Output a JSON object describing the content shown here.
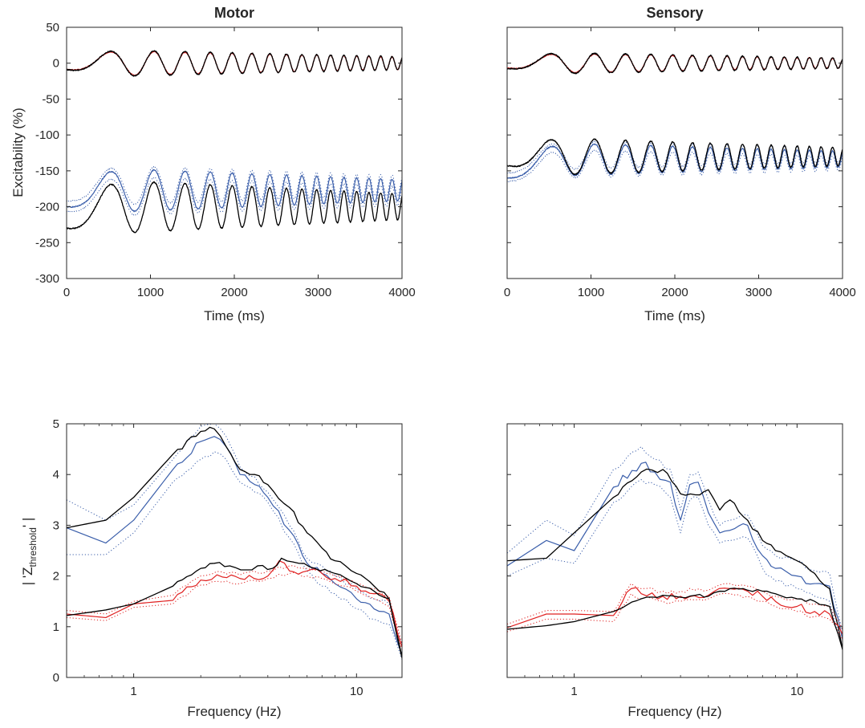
{
  "figure": {
    "colors": {
      "black": "#000000",
      "blue": "#3A5EAA",
      "red": "#E02020",
      "axis": "#262626"
    }
  },
  "chart_data": [
    {
      "id": "motor-time",
      "type": "line",
      "title": "Motor",
      "xlabel": "Time (ms)",
      "ylabel": "Excitability (%)",
      "xlim": [
        0,
        4000
      ],
      "ylim": [
        -300,
        50
      ],
      "xticks": [
        0,
        1000,
        2000,
        3000,
        4000
      ],
      "xtick_labels": [
        "0",
        "1000",
        "2000",
        "3000",
        "4000"
      ],
      "yticks": [
        -300,
        -250,
        -200,
        -150,
        -100,
        -50,
        0,
        50
      ],
      "ytick_labels": [
        "-300",
        "-250",
        "-200",
        "-150",
        "-100",
        "-50",
        "0",
        "50"
      ],
      "grid": false,
      "series": [
        {
          "color": "#3A5EAA",
          "style": "dotted",
          "width": 1,
          "kind": "chirp",
          "base": -170,
          "startOffset": -8,
          "amp": 30
        },
        {
          "color": "#3A5EAA",
          "style": "dotted",
          "width": 1,
          "kind": "chirp",
          "base": -185,
          "startOffset": -8,
          "amp": 30
        },
        {
          "color": "#3A5EAA",
          "style": "solid",
          "width": 1.2,
          "kind": "chirp",
          "base": -177,
          "startOffset": -8,
          "amp": 33
        },
        {
          "color": "#000000",
          "style": "solid",
          "width": 1.3,
          "kind": "chirp",
          "base": -200,
          "startOffset": -12,
          "amp": 40
        },
        {
          "color": "#E02020",
          "style": "solid",
          "width": 1.2,
          "kind": "chirp",
          "base": 0,
          "startOffset": 0,
          "amp": 19
        },
        {
          "color": "#000000",
          "style": "solid",
          "width": 1.3,
          "kind": "chirp",
          "base": 0,
          "startOffset": 0,
          "amp": 20
        }
      ]
    },
    {
      "id": "sensory-time",
      "type": "line",
      "title": "Sensory",
      "xlabel": "Time (ms)",
      "xlim": [
        0,
        4000
      ],
      "ylim": [
        -300,
        50
      ],
      "xticks": [
        0,
        1000,
        2000,
        3000,
        4000
      ],
      "xtick_labels": [
        "0",
        "1000",
        "2000",
        "3000",
        "4000"
      ],
      "yticks": [
        -300,
        -250,
        -200,
        -150,
        -100,
        -50,
        0,
        50
      ],
      "ytick_labels": [],
      "grid": false,
      "series": [
        {
          "color": "#3A5EAA",
          "style": "dotted",
          "width": 1,
          "kind": "chirp",
          "base": -128,
          "startOffset": -15,
          "amp": 22
        },
        {
          "color": "#3A5EAA",
          "style": "dotted",
          "width": 1,
          "kind": "chirp",
          "base": -140,
          "startOffset": -15,
          "amp": 22
        },
        {
          "color": "#3A5EAA",
          "style": "solid",
          "width": 1.2,
          "kind": "chirp",
          "base": -134,
          "startOffset": -15,
          "amp": 25
        },
        {
          "color": "#000000",
          "style": "solid",
          "width": 1.3,
          "kind": "chirp",
          "base": -130,
          "startOffset": 0,
          "amp": 28
        },
        {
          "color": "#E02020",
          "style": "solid",
          "width": 1.2,
          "kind": "chirp",
          "base": 0,
          "startOffset": 0,
          "amp": 15
        },
        {
          "color": "#000000",
          "style": "solid",
          "width": 1.3,
          "kind": "chirp",
          "base": 0,
          "startOffset": 0,
          "amp": 16
        }
      ]
    },
    {
      "id": "motor-freq",
      "type": "line",
      "xlabel": "Frequency (Hz)",
      "ylabel_main": "| 'Z",
      "ylabel_sub": "threshold",
      "ylabel_end": "' |",
      "xscale": "log",
      "xlim": [
        0.5,
        16
      ],
      "ylim": [
        0,
        5
      ],
      "xticks": [
        1,
        10
      ],
      "xtick_labels": [
        "1",
        "10"
      ],
      "yticks": [
        0,
        1,
        2,
        3,
        4,
        5
      ],
      "ytick_labels": [
        "0",
        "1",
        "2",
        "3",
        "4",
        "5"
      ],
      "grid": false,
      "series": [
        {
          "color": "#3A5EAA",
          "style": "dotted",
          "width": 1,
          "noise": 0.05,
          "x": [
            0.5,
            0.75,
            1.0,
            1.5,
            2.0,
            2.3,
            2.6,
            3.0,
            3.5,
            4.0,
            5.0,
            6.0,
            7.0,
            8.0,
            10.0,
            12.0,
            14.0,
            16.0
          ],
          "y": [
            3.5,
            3.1,
            3.4,
            4.3,
            4.95,
            5.0,
            4.75,
            4.15,
            3.95,
            3.65,
            3.0,
            2.35,
            2.2,
            2.0,
            1.75,
            1.55,
            1.45,
            0.65
          ]
        },
        {
          "color": "#3A5EAA",
          "style": "dotted",
          "width": 1,
          "noise": 0.05,
          "x": [
            0.5,
            0.75,
            1.0,
            1.5,
            2.0,
            2.3,
            2.6,
            3.0,
            3.5,
            4.0,
            5.0,
            6.0,
            7.0,
            8.0,
            10.0,
            12.0,
            14.0,
            16.0
          ],
          "y": [
            2.42,
            2.42,
            2.85,
            3.85,
            4.3,
            4.45,
            4.3,
            3.85,
            3.65,
            3.45,
            2.75,
            2.1,
            1.8,
            1.65,
            1.35,
            1.15,
            1.05,
            0.35
          ]
        },
        {
          "color": "#3A5EAA",
          "style": "solid",
          "width": 1.2,
          "noise": 0.06,
          "x": [
            0.5,
            0.75,
            1.0,
            1.5,
            2.0,
            2.3,
            2.6,
            3.0,
            3.5,
            4.0,
            5.0,
            6.0,
            7.0,
            8.0,
            10.0,
            12.0,
            14.0,
            16.0
          ],
          "y": [
            2.95,
            2.65,
            3.1,
            4.1,
            4.65,
            4.75,
            4.55,
            4.0,
            3.8,
            3.55,
            2.9,
            2.25,
            2.05,
            1.85,
            1.55,
            1.35,
            1.25,
            0.45
          ]
        },
        {
          "color": "#000000",
          "style": "solid",
          "width": 1.3,
          "noise": 0.05,
          "x": [
            0.5,
            0.75,
            1.0,
            1.5,
            2.0,
            2.3,
            2.6,
            3.0,
            3.5,
            4.0,
            5.0,
            6.0,
            7.0,
            8.0,
            10.0,
            12.0,
            14.0,
            16.0
          ],
          "y": [
            2.95,
            3.1,
            3.55,
            4.4,
            4.85,
            4.9,
            4.55,
            4.1,
            4.0,
            3.8,
            3.35,
            2.85,
            2.55,
            2.3,
            2.05,
            1.8,
            1.55,
            0.4
          ]
        },
        {
          "color": "#E02020",
          "style": "dotted",
          "width": 1,
          "noise": 0.04,
          "x": [
            0.5,
            0.75,
            1.0,
            1.5,
            2.0,
            2.5,
            3.0,
            4.0,
            5.0,
            6.0,
            7.0,
            8.0,
            10.0,
            12.0,
            14.0,
            16.0
          ],
          "y": [
            1.32,
            1.25,
            1.5,
            1.62,
            2.0,
            2.08,
            2.02,
            2.1,
            2.2,
            2.15,
            2.1,
            2.0,
            1.85,
            1.75,
            1.6,
            0.65
          ]
        },
        {
          "color": "#E02020",
          "style": "dotted",
          "width": 1,
          "noise": 0.04,
          "x": [
            0.5,
            0.75,
            1.0,
            1.5,
            2.0,
            2.5,
            3.0,
            4.0,
            5.0,
            6.0,
            7.0,
            8.0,
            10.0,
            12.0,
            14.0,
            16.0
          ],
          "y": [
            1.18,
            1.12,
            1.38,
            1.45,
            1.82,
            1.88,
            1.85,
            1.95,
            2.05,
            2.0,
            1.95,
            1.85,
            1.7,
            1.55,
            1.4,
            0.55
          ]
        },
        {
          "color": "#E02020",
          "style": "solid",
          "width": 1.2,
          "noise": 0.07,
          "x": [
            0.5,
            0.75,
            1.0,
            1.5,
            2.0,
            2.5,
            3.0,
            4.0,
            4.5,
            5.0,
            6.0,
            7.0,
            8.0,
            10.0,
            12.0,
            14.0,
            16.0
          ],
          "y": [
            1.25,
            1.18,
            1.45,
            1.52,
            1.92,
            1.98,
            1.95,
            2.0,
            2.3,
            2.1,
            2.1,
            2.05,
            1.95,
            1.8,
            1.65,
            1.5,
            0.6
          ]
        },
        {
          "color": "#000000",
          "style": "solid",
          "width": 1.3,
          "noise": 0.04,
          "x": [
            0.5,
            0.75,
            1.0,
            1.5,
            2.0,
            2.3,
            2.7,
            3.2,
            3.6,
            4.2,
            4.6,
            5.5,
            6.5,
            8.0,
            10.0,
            12.0,
            14.0,
            16.0
          ],
          "y": [
            1.22,
            1.33,
            1.45,
            1.8,
            2.15,
            2.25,
            2.2,
            2.12,
            2.2,
            2.15,
            2.35,
            2.25,
            2.15,
            2.05,
            1.85,
            1.7,
            1.55,
            0.38
          ]
        }
      ]
    },
    {
      "id": "sensory-freq",
      "type": "line",
      "xlabel": "Frequency (Hz)",
      "xscale": "log",
      "xlim": [
        0.5,
        16
      ],
      "ylim": [
        0,
        5
      ],
      "xticks": [
        1,
        10
      ],
      "xtick_labels": [
        "1",
        "10"
      ],
      "yticks": [
        0,
        1,
        2,
        3,
        4,
        5
      ],
      "ytick_labels": [],
      "grid": false,
      "series": [
        {
          "color": "#3A5EAA",
          "style": "dotted",
          "width": 1,
          "noise": 0.05,
          "x": [
            0.5,
            0.75,
            1.0,
            1.5,
            2.0,
            2.3,
            2.7,
            3.0,
            3.3,
            3.6,
            4.0,
            4.5,
            5.0,
            6.0,
            7.0,
            8.0,
            10.0,
            12.0,
            14.0,
            16.0
          ],
          "y": [
            2.45,
            3.1,
            2.8,
            4.1,
            4.55,
            4.3,
            4.1,
            3.3,
            4.0,
            4.05,
            3.5,
            3.0,
            3.1,
            3.2,
            2.6,
            2.4,
            2.3,
            2.1,
            2.05,
            0.9
          ]
        },
        {
          "color": "#3A5EAA",
          "style": "dotted",
          "width": 1,
          "noise": 0.05,
          "x": [
            0.5,
            0.75,
            1.0,
            1.5,
            2.0,
            2.3,
            2.7,
            3.0,
            3.3,
            3.6,
            4.0,
            4.5,
            5.0,
            6.0,
            7.0,
            8.0,
            10.0,
            12.0,
            14.0,
            16.0
          ],
          "y": [
            2.0,
            2.35,
            2.25,
            3.45,
            3.9,
            3.8,
            3.55,
            2.85,
            3.5,
            3.55,
            3.0,
            2.65,
            2.7,
            2.75,
            2.15,
            1.9,
            1.75,
            1.6,
            1.5,
            0.6
          ]
        },
        {
          "color": "#3A5EAA",
          "style": "solid",
          "width": 1.2,
          "noise": 0.08,
          "x": [
            0.5,
            0.75,
            1.0,
            1.5,
            2.0,
            2.3,
            2.7,
            3.0,
            3.3,
            3.6,
            4.0,
            4.5,
            5.0,
            6.0,
            7.0,
            8.0,
            10.0,
            12.0,
            14.0,
            16.0
          ],
          "y": [
            2.2,
            2.7,
            2.5,
            3.75,
            4.22,
            4.05,
            3.85,
            3.1,
            3.8,
            3.85,
            3.25,
            2.85,
            2.9,
            3.0,
            2.4,
            2.15,
            2.0,
            1.85,
            1.8,
            0.75
          ]
        },
        {
          "color": "#000000",
          "style": "solid",
          "width": 1.3,
          "noise": 0.05,
          "x": [
            0.5,
            0.75,
            1.0,
            1.5,
            2.0,
            2.5,
            3.0,
            3.5,
            4.0,
            4.5,
            5.0,
            6.0,
            7.0,
            8.0,
            10.0,
            12.0,
            14.0,
            16.0
          ],
          "y": [
            2.3,
            2.35,
            2.85,
            3.55,
            4.05,
            4.1,
            3.62,
            3.6,
            3.7,
            3.3,
            3.5,
            3.1,
            2.7,
            2.5,
            2.3,
            2.05,
            1.75,
            0.55
          ]
        },
        {
          "color": "#E02020",
          "style": "dotted",
          "width": 1,
          "noise": 0.05,
          "x": [
            0.5,
            0.75,
            1.0,
            1.5,
            1.8,
            2.0,
            2.5,
            3.0,
            4.0,
            5.0,
            6.0,
            7.0,
            8.0,
            10.0,
            12.0,
            14.0,
            16.0
          ],
          "y": [
            1.05,
            1.32,
            1.32,
            1.3,
            1.85,
            1.75,
            1.7,
            1.7,
            1.72,
            1.85,
            1.8,
            1.7,
            1.6,
            1.55,
            1.45,
            1.4,
            0.95
          ]
        },
        {
          "color": "#E02020",
          "style": "dotted",
          "width": 1,
          "noise": 0.05,
          "x": [
            0.5,
            0.75,
            1.0,
            1.5,
            1.8,
            2.0,
            2.5,
            3.0,
            4.0,
            5.0,
            6.0,
            7.0,
            8.0,
            10.0,
            12.0,
            14.0,
            16.0
          ],
          "y": [
            0.9,
            1.15,
            1.15,
            1.1,
            1.65,
            1.55,
            1.5,
            1.5,
            1.55,
            1.65,
            1.6,
            1.5,
            1.4,
            1.3,
            1.2,
            1.15,
            0.75
          ]
        },
        {
          "color": "#E02020",
          "style": "solid",
          "width": 1.2,
          "noise": 0.07,
          "x": [
            0.5,
            0.75,
            1.0,
            1.5,
            1.8,
            2.0,
            2.5,
            3.0,
            4.0,
            5.0,
            6.0,
            7.0,
            8.0,
            10.0,
            12.0,
            14.0,
            16.0
          ],
          "y": [
            0.98,
            1.25,
            1.25,
            1.22,
            1.75,
            1.65,
            1.6,
            1.6,
            1.62,
            1.75,
            1.7,
            1.6,
            1.5,
            1.4,
            1.3,
            1.25,
            0.85
          ]
        },
        {
          "color": "#000000",
          "style": "solid",
          "width": 1.3,
          "noise": 0.03,
          "x": [
            0.5,
            0.75,
            1.0,
            1.5,
            2.0,
            2.5,
            3.0,
            3.5,
            4.0,
            4.5,
            5.0,
            6.0,
            7.0,
            8.0,
            10.0,
            12.0,
            14.0,
            16.0
          ],
          "y": [
            0.95,
            1.02,
            1.1,
            1.3,
            1.55,
            1.62,
            1.58,
            1.62,
            1.6,
            1.7,
            1.75,
            1.72,
            1.7,
            1.65,
            1.55,
            1.5,
            1.4,
            0.55
          ]
        }
      ]
    }
  ]
}
